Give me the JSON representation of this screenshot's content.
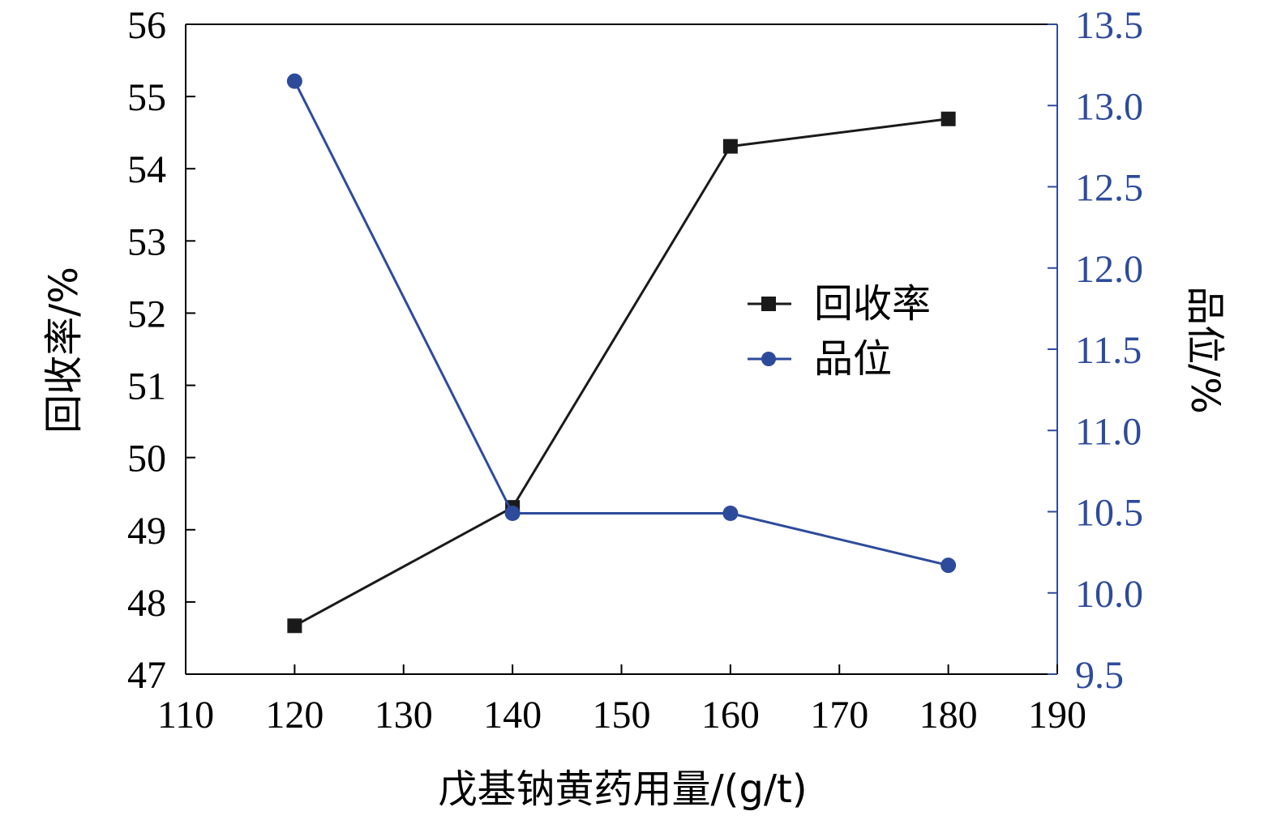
{
  "colors": {
    "left_axis": "#000000",
    "right_axis": "#2e4b9b",
    "series_recovery": "#1a1a1a",
    "series_grade": "#2e4b9b"
  },
  "chart_data": {
    "type": "line",
    "xlabel": "戊基钠黄药用量/(g/t)",
    "ylabel_left": "回收率/%",
    "ylabel_right": "品位/%",
    "xlim": [
      110,
      190
    ],
    "xticks": [
      110,
      120,
      130,
      140,
      150,
      160,
      170,
      180,
      190
    ],
    "ylim_left": [
      47,
      56
    ],
    "yticks_left": [
      47,
      48,
      49,
      50,
      51,
      52,
      53,
      54,
      55,
      56
    ],
    "ylim_right": [
      9.5,
      13.5
    ],
    "yticks_right": [
      "9.5",
      "10.0",
      "10.5",
      "11.0",
      "11.5",
      "12.0",
      "12.5",
      "13.0",
      "13.5"
    ],
    "legend_position": "center-right",
    "grid": false,
    "x": [
      120,
      140,
      160,
      180
    ],
    "series": [
      {
        "name": "回收率",
        "axis": "left",
        "marker": "square",
        "color": "#1a1a1a",
        "values": [
          47.67,
          49.31,
          54.31,
          54.69
        ]
      },
      {
        "name": "品位",
        "axis": "right",
        "marker": "circle",
        "color": "#2e4b9b",
        "values": [
          13.15,
          10.49,
          10.49,
          10.17
        ]
      }
    ]
  }
}
